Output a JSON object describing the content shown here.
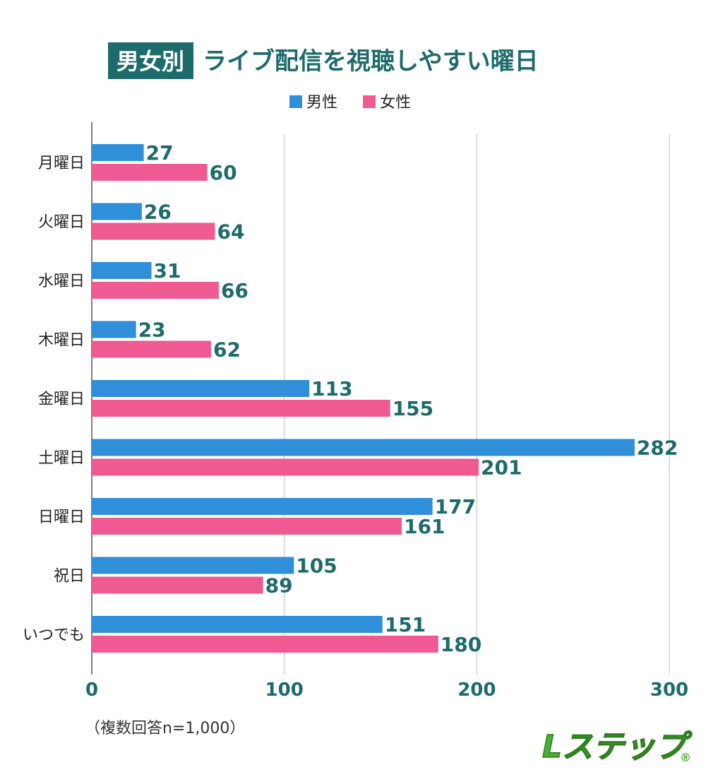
{
  "chart_data": {
    "type": "bar",
    "orientation": "horizontal",
    "title_badge": "男女別",
    "title": "ライブ配信を視聴しやすい曜日",
    "categories": [
      "月曜日",
      "火曜日",
      "水曜日",
      "木曜日",
      "金曜日",
      "土曜日",
      "日曜日",
      "祝日",
      "いつでも"
    ],
    "series": [
      {
        "name": "男性",
        "color": "#2f8fd8",
        "values": [
          27,
          26,
          31,
          23,
          113,
          282,
          177,
          105,
          151
        ]
      },
      {
        "name": "女性",
        "color": "#ee5a91",
        "values": [
          60,
          64,
          66,
          62,
          155,
          201,
          161,
          89,
          180
        ]
      }
    ],
    "xlim": [
      0,
      300
    ],
    "xticks": [
      "0",
      "100",
      "200",
      "300"
    ],
    "grid": true,
    "legend_position": "top-center",
    "note": "（複数回答n=1,000）"
  },
  "logo": {
    "text": "Lステップ",
    "registered": "®"
  },
  "colors": {
    "accent": "#1d6b6b",
    "male": "#2f8fd8",
    "female": "#ee5a91",
    "text": "#333333"
  }
}
